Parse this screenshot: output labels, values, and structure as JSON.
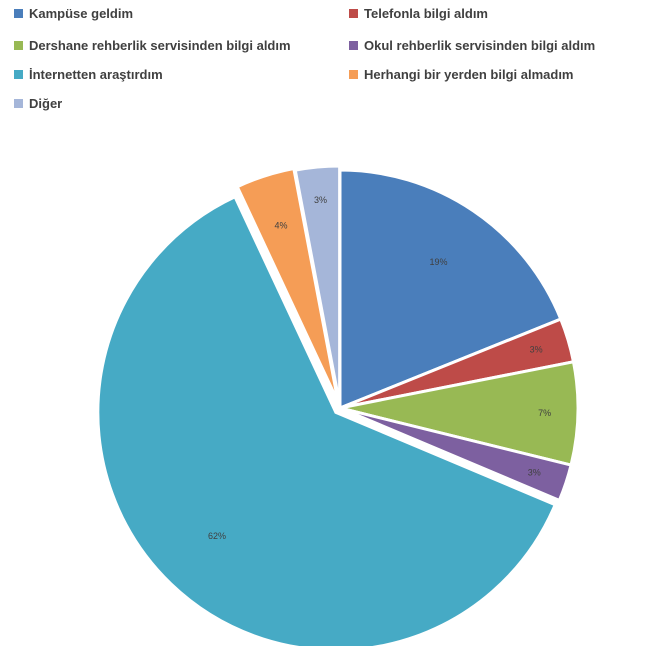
{
  "chart_data": {
    "type": "pie",
    "title": "",
    "slices": [
      {
        "label": "Kampüse geldim",
        "value": 19,
        "value_label": "19%",
        "color": "#4a7ebb"
      },
      {
        "label": "Telefonla bilgi aldım",
        "value": 3,
        "value_label": "3%",
        "color": "#be4b48"
      },
      {
        "label": "Dershane rehberlik servisinden bilgi aldım",
        "value": 7,
        "value_label": "7%",
        "color": "#98b954"
      },
      {
        "label": "Okul rehberlik servisinden bilgi aldım",
        "value": 2.5,
        "value_label": "3%",
        "color": "#7d60a0"
      },
      {
        "label": "İnternetten araştırdım",
        "value": 62,
        "value_label": "62%",
        "color": "#46aac5"
      },
      {
        "label": "Herhangi bir yerden bilgi almadım",
        "value": 4,
        "value_label": "4%",
        "color": "#f59d56"
      },
      {
        "label": "Diğer",
        "value": 3,
        "value_label": "3%",
        "color": "#a5b6d9"
      }
    ],
    "legend_position": "top",
    "start_angle_deg": 0,
    "direction": "clockwise"
  }
}
